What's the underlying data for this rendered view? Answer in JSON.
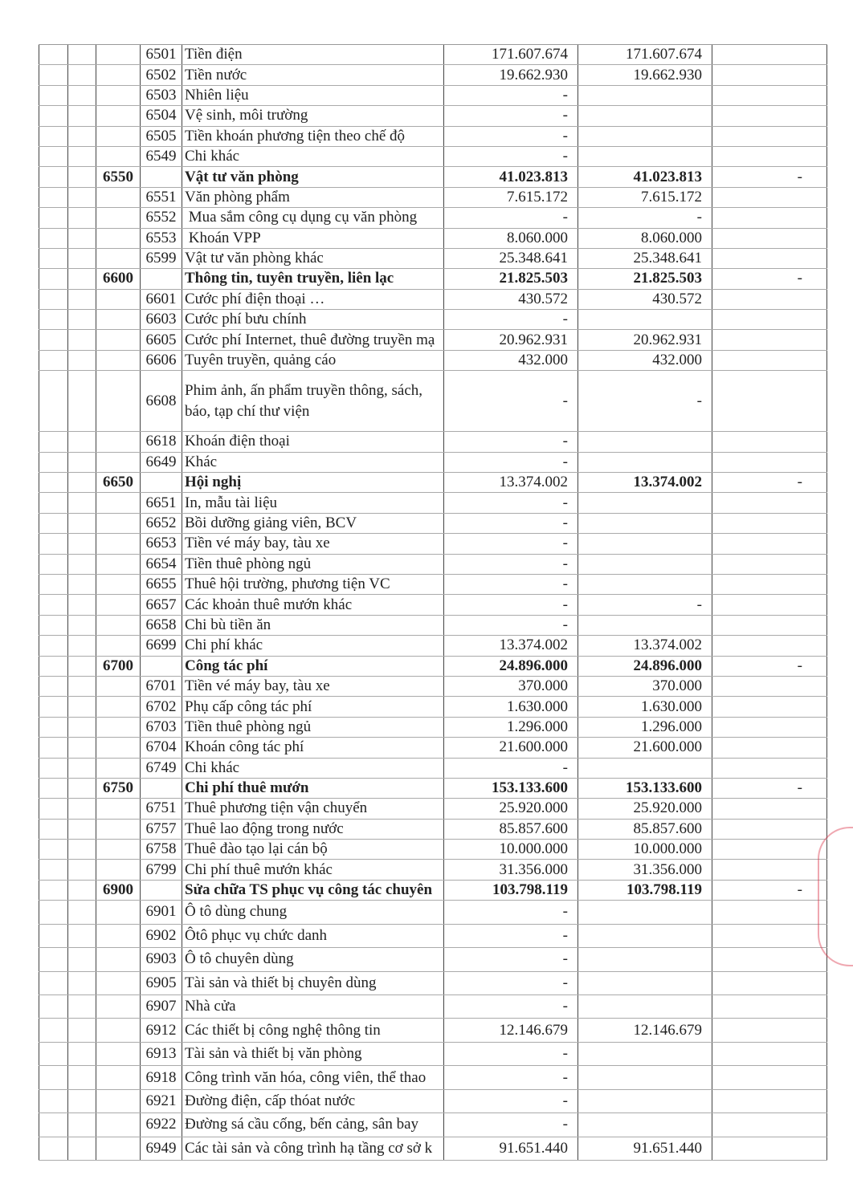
{
  "rows": [
    {
      "code": "",
      "sub": "6501",
      "name": "Tiền điện",
      "v1": "171.607.674",
      "v2": "171.607.674",
      "v3": "",
      "bold": false
    },
    {
      "code": "",
      "sub": "6502",
      "name": "Tiền nước",
      "v1": "19.662.930",
      "v2": "19.662.930",
      "v3": "",
      "bold": false
    },
    {
      "code": "",
      "sub": "6503",
      "name": "Nhiên liệu",
      "v1": "-",
      "v2": "",
      "v3": "",
      "bold": false
    },
    {
      "code": "",
      "sub": "6504",
      "name": "Vệ sinh, môi trường",
      "v1": "-",
      "v2": "",
      "v3": "",
      "bold": false
    },
    {
      "code": "",
      "sub": "6505",
      "name": "Tiền khoán phương tiện theo chế độ",
      "v1": "-",
      "v2": "",
      "v3": "",
      "bold": false
    },
    {
      "code": "",
      "sub": "6549",
      "name": "Chi khác",
      "v1": "-",
      "v2": "",
      "v3": "",
      "bold": false
    },
    {
      "code": "6550",
      "sub": "",
      "name": "Vật tư văn phòng",
      "v1": "41.023.813",
      "v2": "41.023.813",
      "v3": "-",
      "bold": true
    },
    {
      "code": "",
      "sub": "6551",
      "name": "Văn phòng phẩm",
      "v1": "7.615.172",
      "v2": "7.615.172",
      "v3": "",
      "bold": false
    },
    {
      "code": "",
      "sub": "6552",
      "name": " Mua sắm công cụ dụng cụ văn phòng",
      "v1": "-",
      "v2": "-",
      "v3": "",
      "bold": false
    },
    {
      "code": "",
      "sub": "6553",
      "name": " Khoán VPP",
      "v1": "8.060.000",
      "v2": "8.060.000",
      "v3": "",
      "bold": false
    },
    {
      "code": "",
      "sub": "6599",
      "name": "Vật tư văn phòng khác",
      "v1": "25.348.641",
      "v2": "25.348.641",
      "v3": "",
      "bold": false
    },
    {
      "code": "6600",
      "sub": "",
      "name": "Thông tin, tuyên truyền, liên lạc",
      "v1": "21.825.503",
      "v2": "21.825.503",
      "v3": "-",
      "bold": true
    },
    {
      "code": "",
      "sub": "6601",
      "name": "Cước phí điện thoại …",
      "v1": "430.572",
      "v2": "430.572",
      "v3": "",
      "bold": false
    },
    {
      "code": "",
      "sub": "6603",
      "name": "Cước phí bưu chính",
      "v1": "-",
      "v2": "",
      "v3": "",
      "bold": false
    },
    {
      "code": "",
      "sub": "6605",
      "name": "Cước phí Internet, thuê đường truyền mạ",
      "v1": "20.962.931",
      "v2": "20.962.931",
      "v3": "",
      "bold": false
    },
    {
      "code": "",
      "sub": "6606",
      "name": "Tuyên truyền, quảng cáo",
      "v1": "432.000",
      "v2": "432.000",
      "v3": "",
      "bold": false
    },
    {
      "code": "",
      "sub": "6608",
      "name": "Phim ảnh, ấn phẩm truyền thông, sách, báo, tạp chí thư viện",
      "v1": "-",
      "v2": "-",
      "v3": "",
      "bold": false,
      "tall": true
    },
    {
      "code": "",
      "sub": "6618",
      "name": "Khoán điện thoại",
      "v1": "-",
      "v2": "",
      "v3": "",
      "bold": false
    },
    {
      "code": "",
      "sub": "6649",
      "name": "Khác",
      "v1": "-",
      "v2": "",
      "v3": "",
      "bold": false
    },
    {
      "code": "6650",
      "sub": "",
      "name": "Hội nghị",
      "v1": "13.374.002",
      "v2": "13.374.002",
      "v3": "-",
      "bold": true,
      "v1plain": true
    },
    {
      "code": "",
      "sub": "6651",
      "name": "In, mẫu tài liệu",
      "v1": "-",
      "v2": "",
      "v3": "",
      "bold": false
    },
    {
      "code": "",
      "sub": "6652",
      "name": "Bồi dưỡng giảng viên, BCV",
      "v1": "-",
      "v2": "",
      "v3": "",
      "bold": false
    },
    {
      "code": "",
      "sub": "6653",
      "name": "Tiền vé máy bay, tàu xe",
      "v1": "-",
      "v2": "",
      "v3": "",
      "bold": false
    },
    {
      "code": "",
      "sub": "6654",
      "name": "Tiền thuê phòng ngủ",
      "v1": "-",
      "v2": "",
      "v3": "",
      "bold": false
    },
    {
      "code": "",
      "sub": "6655",
      "name": "Thuê hội trường, phương tiện VC",
      "v1": "-",
      "v2": "",
      "v3": "",
      "bold": false
    },
    {
      "code": "",
      "sub": "6657",
      "name": "Các khoản thuê mướn khác",
      "v1": "-",
      "v2": "-",
      "v3": "",
      "bold": false
    },
    {
      "code": "",
      "sub": "6658",
      "name": "Chi bù tiền ăn",
      "v1": "-",
      "v2": "",
      "v3": "",
      "bold": false
    },
    {
      "code": "",
      "sub": "6699",
      "name": "Chi phí khác",
      "v1": "13.374.002",
      "v2": "13.374.002",
      "v3": "",
      "bold": false
    },
    {
      "code": "6700",
      "sub": "",
      "name": "Công tác phí",
      "v1": "24.896.000",
      "v2": "24.896.000",
      "v3": "-",
      "bold": true
    },
    {
      "code": "",
      "sub": "6701",
      "name": "Tiền vé máy bay, tàu xe",
      "v1": "370.000",
      "v2": "370.000",
      "v3": "",
      "bold": false
    },
    {
      "code": "",
      "sub": "6702",
      "name": "Phụ cấp công tác phí",
      "v1": "1.630.000",
      "v2": "1.630.000",
      "v3": "",
      "bold": false
    },
    {
      "code": "",
      "sub": "6703",
      "name": "Tiền thuê phòng ngủ",
      "v1": "1.296.000",
      "v2": "1.296.000",
      "v3": "",
      "bold": false
    },
    {
      "code": "",
      "sub": "6704",
      "name": "Khoán công tác phí",
      "v1": "21.600.000",
      "v2": "21.600.000",
      "v3": "",
      "bold": false
    },
    {
      "code": "",
      "sub": "6749",
      "name": "Chi khác",
      "v1": "-",
      "v2": "",
      "v3": "",
      "bold": false
    },
    {
      "code": "6750",
      "sub": "",
      "name": "Chi phí thuê mướn",
      "v1": "153.133.600",
      "v2": "153.133.600",
      "v3": "-",
      "bold": true
    },
    {
      "code": "",
      "sub": "6751",
      "name": "Thuê phương tiện vận chuyển",
      "v1": "25.920.000",
      "v2": "25.920.000",
      "v3": "",
      "bold": false
    },
    {
      "code": "",
      "sub": "6757",
      "name": "Thuê lao động trong nước",
      "v1": "85.857.600",
      "v2": "85.857.600",
      "v3": "",
      "bold": false
    },
    {
      "code": "",
      "sub": "6758",
      "name": "Thuê đào tạo lại cán bộ",
      "v1": "10.000.000",
      "v2": "10.000.000",
      "v3": "",
      "bold": false
    },
    {
      "code": "",
      "sub": "6799",
      "name": "Chi phí thuê mướn khác",
      "v1": "31.356.000",
      "v2": "31.356.000",
      "v3": "",
      "bold": false
    },
    {
      "code": "6900",
      "sub": "",
      "name": "Sửa chữa TS phục vụ công tác chuyên",
      "v1": "103.798.119",
      "v2": "103.798.119",
      "v3": "-",
      "bold": true
    },
    {
      "code": "",
      "sub": "6901",
      "name": "Ô tô dùng chung",
      "v1": "-",
      "v2": "",
      "v3": "",
      "bold": false,
      "big": true
    },
    {
      "code": "",
      "sub": "6902",
      "name": "Ôtô phục vụ chức danh",
      "v1": "-",
      "v2": "",
      "v3": "",
      "bold": false,
      "big": true
    },
    {
      "code": "",
      "sub": "6903",
      "name": "Ô tô chuyên dùng",
      "v1": "-",
      "v2": "",
      "v3": "",
      "bold": false,
      "big": true
    },
    {
      "code": "",
      "sub": "6905",
      "name": "Tài sản và thiết bị chuyên dùng",
      "v1": "-",
      "v2": "",
      "v3": "",
      "bold": false,
      "big": true
    },
    {
      "code": "",
      "sub": "6907",
      "name": "Nhà cửa",
      "v1": "-",
      "v2": "",
      "v3": "",
      "bold": false,
      "big": true
    },
    {
      "code": "",
      "sub": "6912",
      "name": "Các thiết bị công nghệ thông tin",
      "v1": "12.146.679",
      "v2": "12.146.679",
      "v3": "",
      "bold": false,
      "big": true
    },
    {
      "code": "",
      "sub": "6913",
      "name": "Tài sản và thiết bị văn phòng",
      "v1": "-",
      "v2": "",
      "v3": "",
      "bold": false,
      "big": true
    },
    {
      "code": "",
      "sub": "6918",
      "name": "Công trình văn hóa, công viên, thể thao",
      "v1": "-",
      "v2": "",
      "v3": "",
      "bold": false,
      "big": true
    },
    {
      "code": "",
      "sub": "6921",
      "name": "Đường điện, cấp thóat nước",
      "v1": "-",
      "v2": "",
      "v3": "",
      "bold": false,
      "big": true
    },
    {
      "code": "",
      "sub": "6922",
      "name": "Đường sá cầu cống, bến cảng, sân bay",
      "v1": "-",
      "v2": "",
      "v3": "",
      "bold": false,
      "big": true
    },
    {
      "code": "",
      "sub": "6949",
      "name": "Các tài sản và công trình hạ tầng cơ sở k",
      "v1": "91.651.440",
      "v2": "91.651.440",
      "v3": "",
      "bold": false,
      "big": true
    }
  ],
  "colors": {
    "stamp": "#dc3c50"
  }
}
